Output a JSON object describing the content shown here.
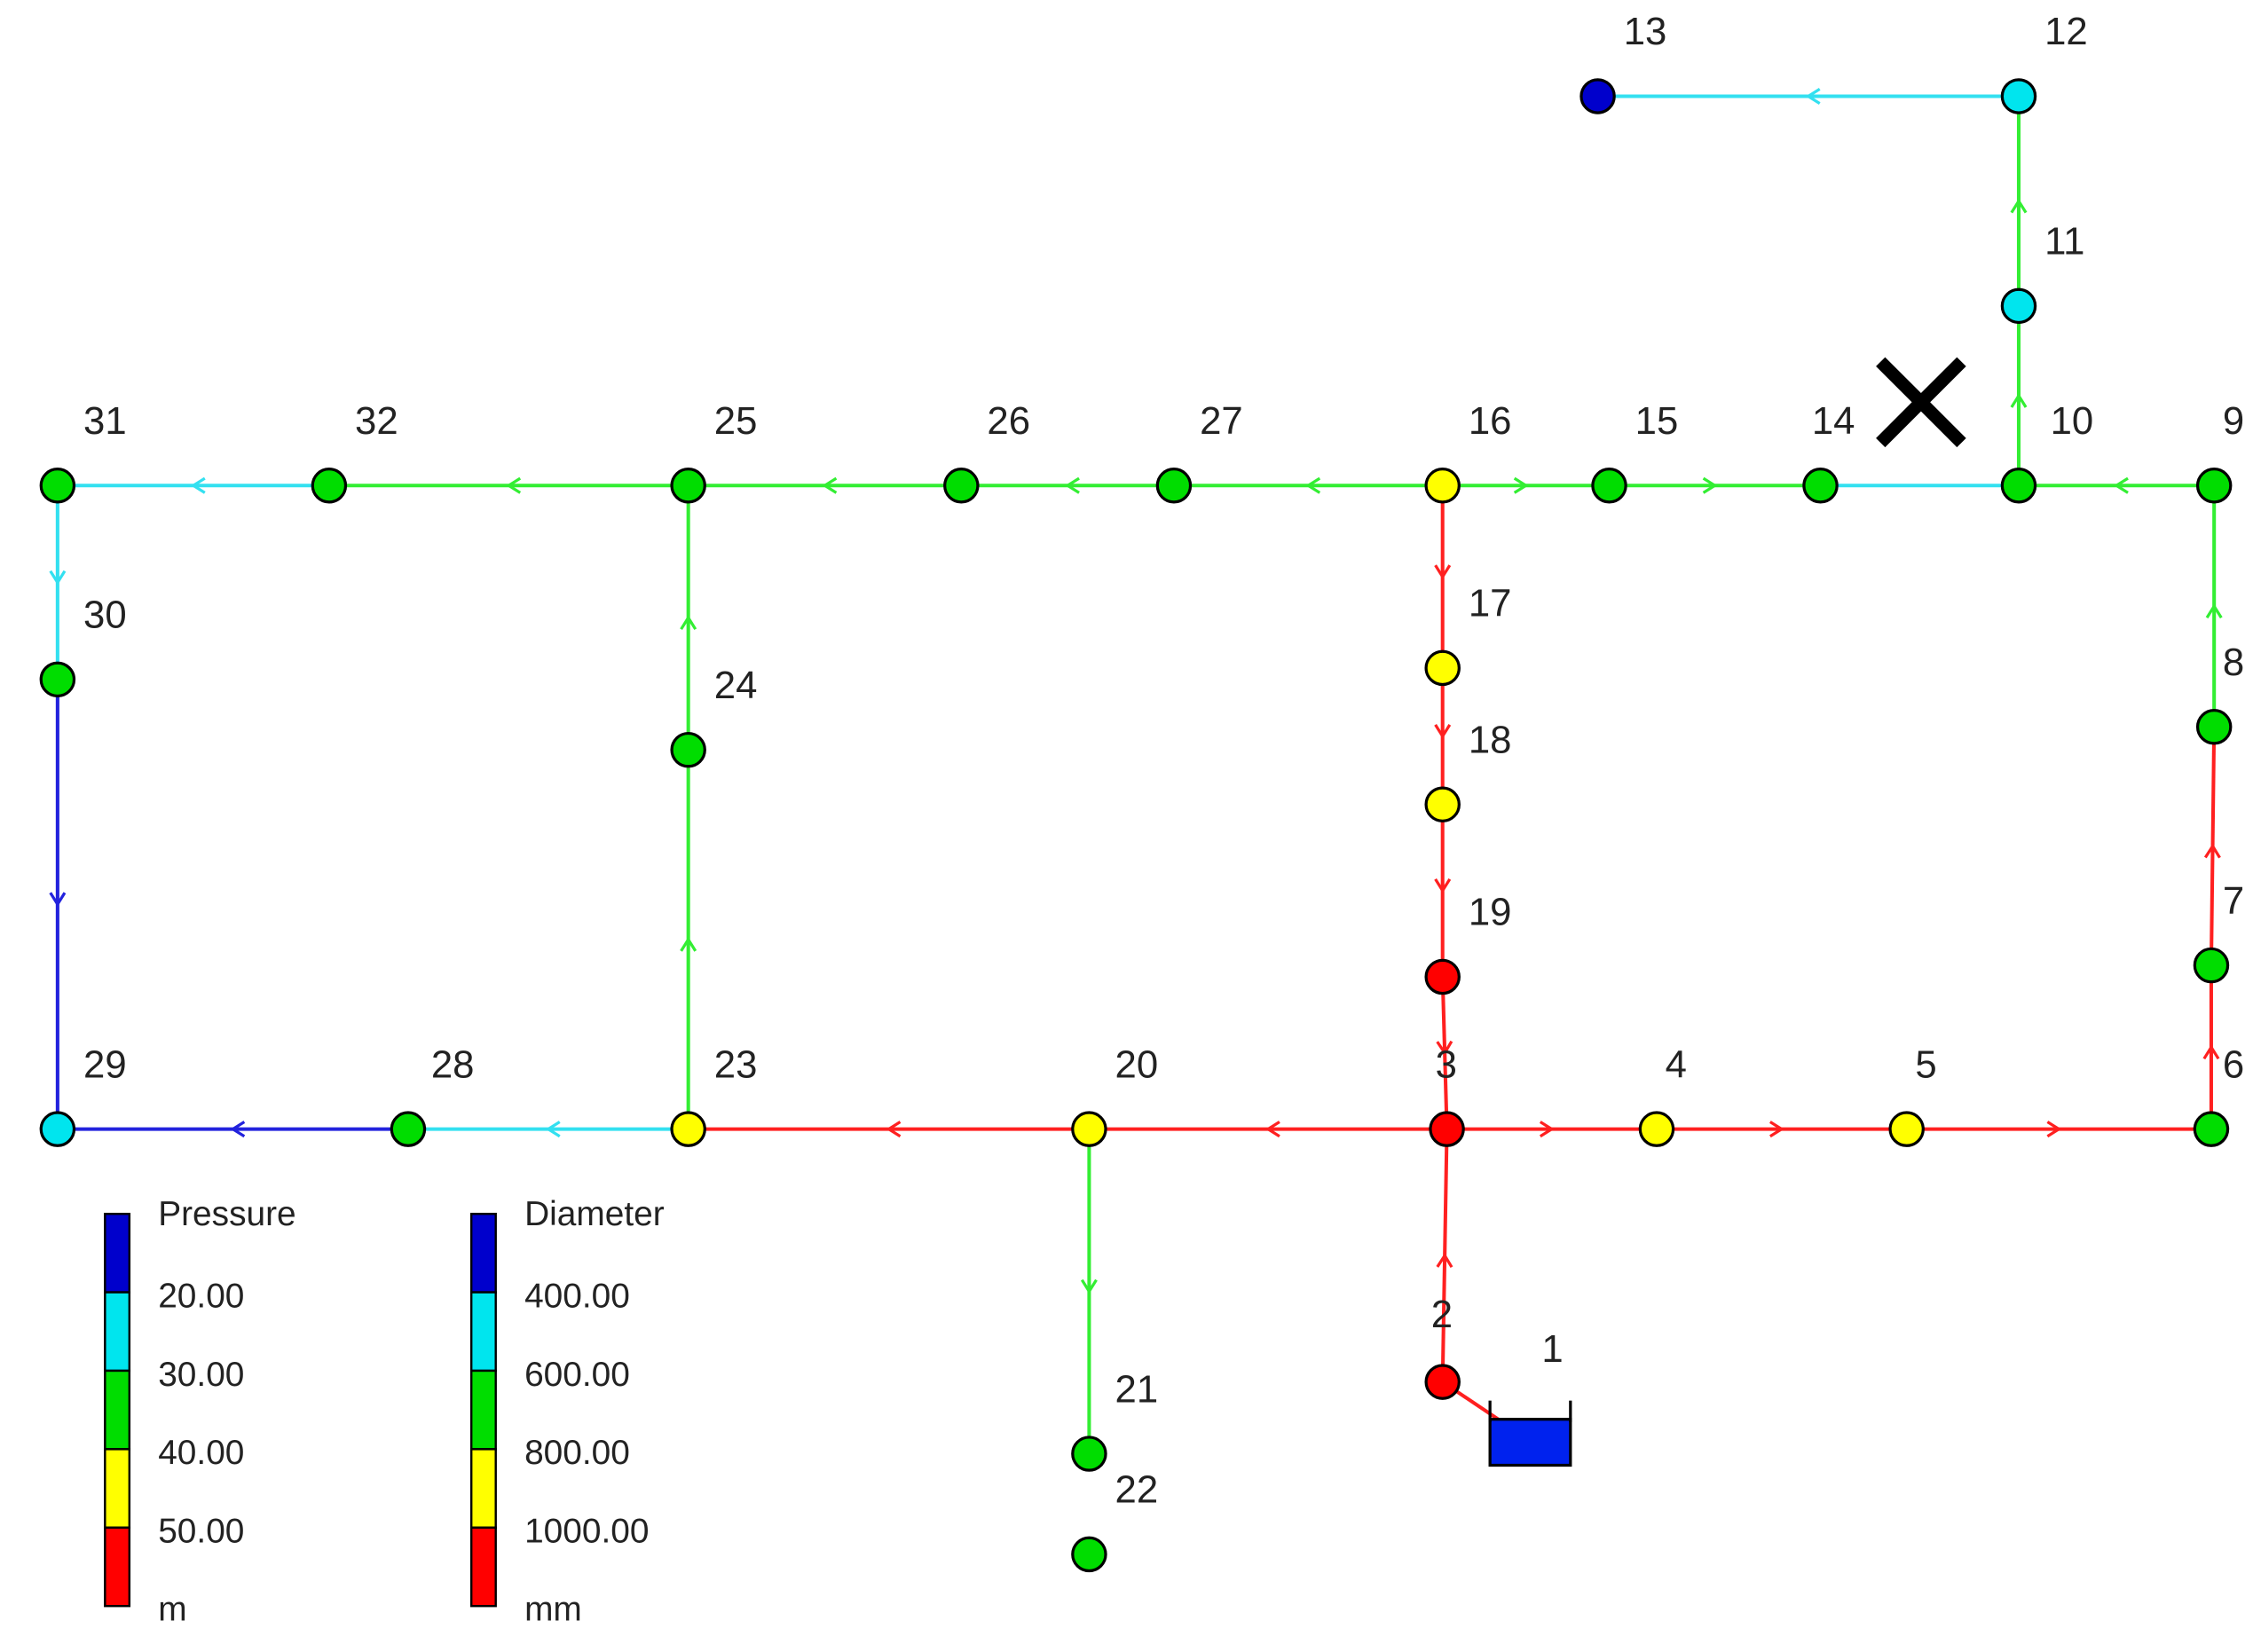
{
  "nodes": [
    {
      "label": "1"
    },
    {
      "label": "2"
    },
    {
      "label": "3"
    },
    {
      "label": "4"
    },
    {
      "label": "5"
    },
    {
      "label": "6"
    },
    {
      "label": "7"
    },
    {
      "label": "8"
    },
    {
      "label": "9"
    },
    {
      "label": "10"
    },
    {
      "label": "11"
    },
    {
      "label": "12"
    },
    {
      "label": "13"
    },
    {
      "label": "14"
    },
    {
      "label": "15"
    },
    {
      "label": "16"
    },
    {
      "label": "17"
    },
    {
      "label": "18"
    },
    {
      "label": "19"
    },
    {
      "label": "20"
    },
    {
      "label": "21"
    },
    {
      "label": "22"
    },
    {
      "label": "23"
    },
    {
      "label": "24"
    },
    {
      "label": "25"
    },
    {
      "label": "26"
    },
    {
      "label": "27"
    },
    {
      "label": "28"
    },
    {
      "label": "29"
    },
    {
      "label": "30"
    },
    {
      "label": "31"
    },
    {
      "label": "32"
    }
  ],
  "legends": [
    {
      "title": "Pressure",
      "labels": [
        "20.00",
        "30.00",
        "40.00",
        "50.00"
      ],
      "unit": "m"
    },
    {
      "title": "Diameter",
      "labels": [
        "400.00",
        "600.00",
        "800.00",
        "1000.00"
      ],
      "unit": "mm"
    }
  ]
}
